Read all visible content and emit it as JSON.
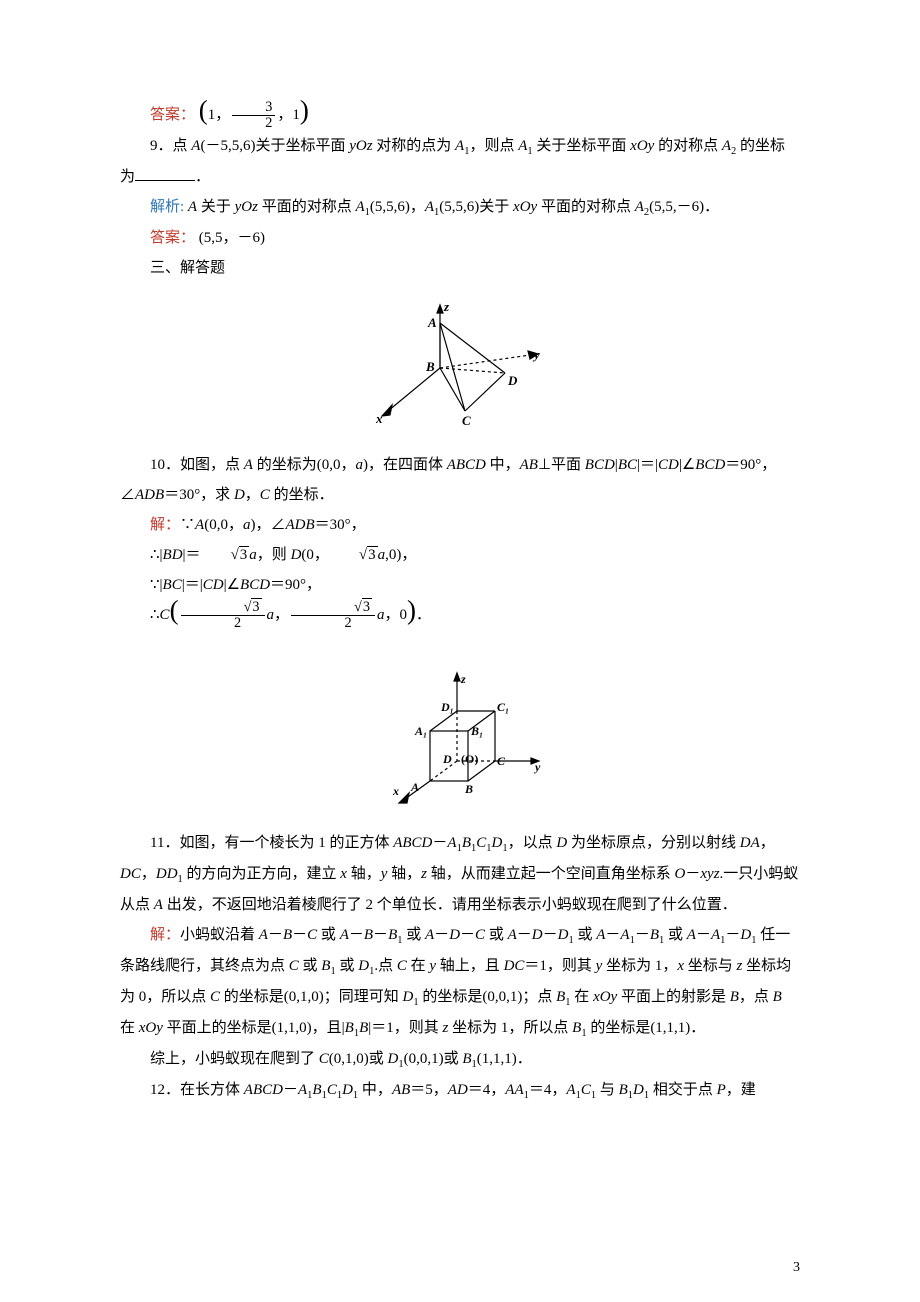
{
  "ans8": {
    "label": "答案：",
    "text_html": "<span class='paren-big'>(</span>1，<span class='frac'><span class='num'>3</span><span class='den'>2</span></span>，1<span class='paren-big'>)</span>"
  },
  "q9": {
    "num": "9．",
    "text_html": "点 <span class='it'>A</span>(－5,5,6)关于坐标平面 <span class='it'>yOz</span> 对称的点为 <span class='it'>A</span><span class='sub'>1</span>，则点 <span class='it'>A</span><span class='sub'>1</span> 关于坐标平面 <span class='it'>xOy</span> 的对称点 <span class='it'>A</span><span class='sub'>2</span> 的坐标为<span class='blank'></span>．"
  },
  "exp9": {
    "label": "解析:",
    "text_html": " <span class='it'>A</span> 关于 <span class='it'>yOz</span> 平面的对称点 <span class='it'>A</span><span class='sub'>1</span>(5,5,6)，<span class='it'>A</span><span class='sub'>1</span>(5,5,6)关于 <span class='it'>xOy</span> 平面的对称点 <span class='it'>A</span><span class='sub'>2</span>(5,5,－6)．"
  },
  "ans9": {
    "label": "答案：",
    "text": " (5,5，－6)"
  },
  "sec3": "三、解答题",
  "fig1": {
    "labels": {
      "z": "z",
      "y": "y",
      "x": "x",
      "A": "A",
      "B": "B",
      "C": "C",
      "D": "D"
    },
    "stroke": "#000000"
  },
  "q10": {
    "num": "10．",
    "text_html": "如图，点 <span class='it'>A</span> 的坐标为(0,0，<span class='it'>a</span>)，在四面体 <span class='it'>ABCD</span> 中，<span class='it'>AB</span>⊥平面 <span class='it'>BCD</span>|<span class='it'>BC</span>|＝|<span class='it'>CD</span>|∠<span class='it'>BCD</span>＝90°，∠<span class='it'>ADB</span>＝30°，求 <span class='it'>D</span>，<span class='it'>C</span> 的坐标．"
  },
  "sol10": {
    "label": "解：",
    "lines_html": [
      "∵<span class='it'>A</span>(0,0，<span class='it'>a</span>)，∠<span class='it'>ADB</span>＝30°，",
      "∴|<span class='it'>BD</span>|＝<span class='sqrt'><span class='rad'>3</span></span><span class='it'>a</span>，则 <span class='it'>D</span>(0，<span class='sqrt'><span class='rad'>3</span></span><span class='it'>a</span>,0)，",
      "∵|<span class='it'>BC</span>|＝|<span class='it'>CD</span>|∠<span class='it'>BCD</span>＝90°，",
      "∴<span class='it'>C</span><span class='paren-big'>(</span><span class='frac'><span class='num'><span class='sqrt'><span class='rad'>3</span></span></span><span class='den'>2</span></span><span class='it'>a</span>，<span class='frac'><span class='num'><span class='sqrt'><span class='rad'>3</span></span></span><span class='den'>2</span></span><span class='it'>a</span>，0<span class='paren-big'>)</span>．"
    ]
  },
  "fig2": {
    "labels": {
      "z": "z",
      "y": "y",
      "x": "x",
      "A": "A",
      "B": "B",
      "C": "C",
      "D": "D",
      "A1": "A₁",
      "B1": "B₁",
      "C1": "C₁",
      "D1": "D₁",
      "O": "(O)"
    },
    "stroke": "#000000"
  },
  "q11": {
    "num": "11．",
    "text_html": "如图，有一个棱长为 1 的正方体 <span class='it'>ABCD</span>－<span class='it'>A</span><span class='sub'>1</span><span class='it'>B</span><span class='sub'>1</span><span class='it'>C</span><span class='sub'>1</span><span class='it'>D</span><span class='sub'>1</span>，以点 <span class='it'>D</span> 为坐标原点，分别以射线 <span class='it'>DA</span>，<span class='it'>DC</span>，<span class='it'>DD</span><span class='sub'>1</span> 的方向为正方向，建立 <span class='it'>x</span> 轴，<span class='it'>y</span> 轴，<span class='it'>z</span> 轴，从而建立起一个空间直角坐标系 <span class='it'>O</span>－<span class='it'>xyz</span>.一只小蚂蚁从点 <span class='it'>A</span> 出发，不返回地沿着棱爬行了 2 个单位长．请用坐标表示小蚂蚁现在爬到了什么位置．"
  },
  "sol11": {
    "label": "解：",
    "text_html": "小蚂蚁沿着 <span class='it'>A</span>－<span class='it'>B</span>－<span class='it'>C</span> 或 <span class='it'>A</span>－<span class='it'>B</span>－<span class='it'>B</span><span class='sub'>1</span> 或 <span class='it'>A</span>－<span class='it'>D</span>－<span class='it'>C</span> 或 <span class='it'>A</span>－<span class='it'>D</span>－<span class='it'>D</span><span class='sub'>1</span> 或 <span class='it'>A</span>－<span class='it'>A</span><span class='sub'>1</span>－<span class='it'>B</span><span class='sub'>1</span> 或 <span class='it'>A</span>－<span class='it'>A</span><span class='sub'>1</span>－<span class='it'>D</span><span class='sub'>1</span> 任一条路线爬行，其终点为点 <span class='it'>C</span> 或 <span class='it'>B</span><span class='sub'>1</span> 或 <span class='it'>D</span><span class='sub'>1</span>.点 <span class='it'>C</span> 在 <span class='it'>y</span> 轴上，且 <span class='it'>DC</span>＝1，则其 <span class='it'>y</span> 坐标为 1，<span class='it'>x</span> 坐标与 <span class='it'>z</span> 坐标均为 0，所以点 <span class='it'>C</span> 的坐标是(0,1,0)；同理可知 <span class='it'>D</span><span class='sub'>1</span> 的坐标是(0,0,1)；点 <span class='it'>B</span><span class='sub'>1</span> 在 <span class='it'>xOy</span> 平面上的射影是 <span class='it'>B</span>，点 <span class='it'>B</span> 在 <span class='it'>xOy</span> 平面上的坐标是(1,1,0)，且|<span class='it'>B</span><span class='sub'>1</span><span class='it'>B</span>|＝1，则其 <span class='it'>z</span> 坐标为 1，所以点 <span class='it'>B</span><span class='sub'>1</span> 的坐标是(1,1,1)．"
  },
  "sol11b": {
    "text_html": "综上，小蚂蚁现在爬到了 <span class='it'>C</span>(0,1,0)或 <span class='it'>D</span><span class='sub'>1</span>(0,0,1)或 <span class='it'>B</span><span class='sub'>1</span>(1,1,1)．"
  },
  "q12": {
    "num": "12．",
    "text_html": "在长方体 <span class='it'>ABCD</span>－<span class='it'>A</span><span class='sub'>1</span><span class='it'>B</span><span class='sub'>1</span><span class='it'>C</span><span class='sub'>1</span><span class='it'>D</span><span class='sub'>1</span> 中，<span class='it'>AB</span>＝5，<span class='it'>AD</span>＝4，<span class='it'>AA</span><span class='sub'>1</span>＝4，<span class='it'>A</span><span class='sub'>1</span><span class='it'>C</span><span class='sub'>1</span> 与 <span class='it'>B</span><span class='sub'>1</span><span class='it'>D</span><span class='sub'>1</span> 相交于点 <span class='it'>P</span>，建"
  },
  "page_number": "3"
}
